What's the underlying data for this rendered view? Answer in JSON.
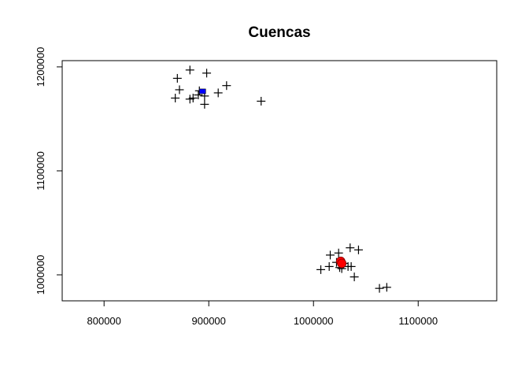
{
  "chart_data": {
    "type": "scatter",
    "title": "Cuencas",
    "xlabel": "",
    "ylabel": "",
    "xlim": [
      760000,
      1175000
    ],
    "ylim": [
      975000,
      1206000
    ],
    "x_ticks": [
      800000,
      900000,
      1000000,
      1100000
    ],
    "y_ticks": [
      1000000,
      1100000,
      1200000
    ],
    "x_tick_labels": [
      "800000",
      "900000",
      "1000000",
      "1100000"
    ],
    "y_tick_labels": [
      "1000000",
      "1100000",
      "1200000"
    ],
    "grid": false,
    "legend": "none",
    "series": [
      {
        "marker": "plus",
        "color": "#000000",
        "points": [
          [
            882000,
            1197000
          ],
          [
            898000,
            1194000
          ],
          [
            870000,
            1189000
          ],
          [
            917000,
            1182000
          ],
          [
            872000,
            1178000
          ],
          [
            891000,
            1177000
          ],
          [
            909000,
            1175000
          ],
          [
            890000,
            1173000
          ],
          [
            896000,
            1172000
          ],
          [
            868000,
            1170000
          ],
          [
            882000,
            1169000
          ],
          [
            885000,
            1170000
          ],
          [
            950000,
            1167000
          ],
          [
            896000,
            1164000
          ],
          [
            1024000,
            1021000
          ],
          [
            1016000,
            1019000
          ],
          [
            1035000,
            1026000
          ],
          [
            1043000,
            1024000
          ],
          [
            1022000,
            1012000
          ],
          [
            1029000,
            1011000
          ],
          [
            1015000,
            1008000
          ],
          [
            1033000,
            1008000
          ],
          [
            1036000,
            1008000
          ],
          [
            1025000,
            1007000
          ],
          [
            1007000,
            1005000
          ],
          [
            1027000,
            1006000
          ],
          [
            1039000,
            998000
          ],
          [
            1070000,
            988000
          ],
          [
            1063000,
            987000
          ]
        ]
      },
      {
        "marker": "filled-square",
        "color": "#0000ff",
        "points": [
          [
            894000,
            1176500
          ]
        ]
      },
      {
        "marker": "filled-circle",
        "color": "#ff0000",
        "points": [
          [
            1026000,
            1013000
          ],
          [
            1027000,
            1011000
          ]
        ]
      }
    ]
  }
}
